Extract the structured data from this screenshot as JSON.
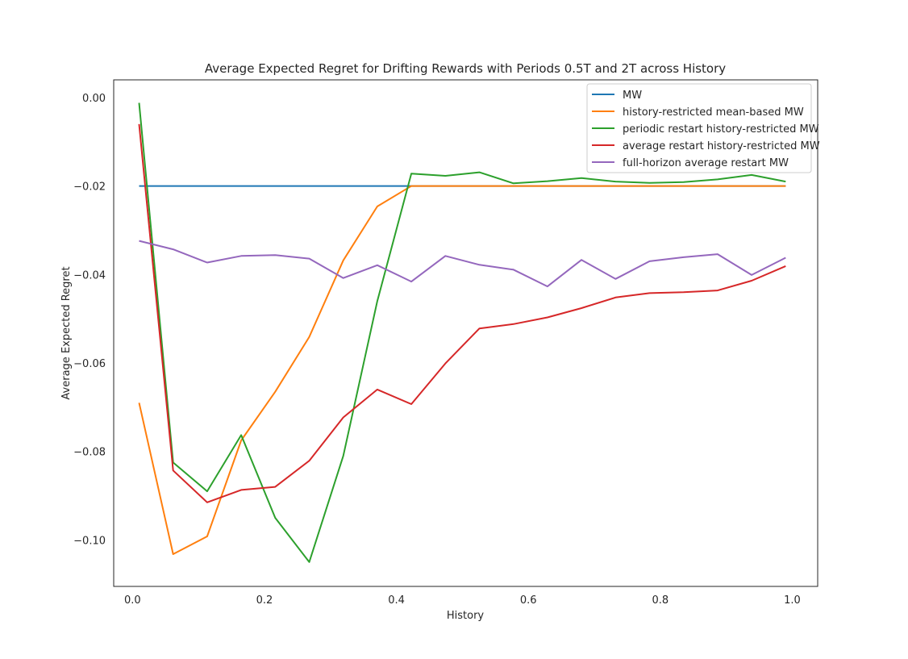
{
  "chart_data": {
    "type": "line",
    "title": "Average Expected Regret for Drifting Rewards with Periods 0.5T and 2T across History",
    "xlabel": "History",
    "ylabel": "Average Expected Regret",
    "xlim": [
      -0.0285,
      1.0385
    ],
    "ylim": [
      -0.1105,
      0.004
    ],
    "xticks": [
      "0.0",
      "0.2",
      "0.4",
      "0.6",
      "0.8",
      "1.0"
    ],
    "xtick_values": [
      0.0,
      0.2,
      0.4,
      0.6,
      0.8,
      1.0
    ],
    "yticks": [
      "0.00",
      "−0.02",
      "−0.04",
      "−0.06",
      "−0.08",
      "−0.10"
    ],
    "ytick_values": [
      0.0,
      -0.02,
      -0.04,
      -0.06,
      -0.08,
      -0.1
    ],
    "grid": false,
    "legend_position": "top-right",
    "x": [
      0.01,
      0.0616,
      0.1132,
      0.1647,
      0.2163,
      0.2679,
      0.3195,
      0.3711,
      0.4226,
      0.4742,
      0.5258,
      0.5774,
      0.6289,
      0.6805,
      0.7321,
      0.7837,
      0.8353,
      0.8868,
      0.9384,
      0.99
    ],
    "series": [
      {
        "name": "MW",
        "color": "#1f77b4",
        "values": [
          -0.02,
          -0.02,
          -0.02,
          -0.02,
          -0.02,
          -0.02,
          -0.02,
          -0.02,
          -0.02,
          -0.02,
          -0.02,
          -0.02,
          -0.02,
          -0.02,
          -0.02,
          -0.02,
          -0.02,
          -0.02,
          -0.02,
          -0.02
        ]
      },
      {
        "name": "history-restricted mean-based MW",
        "color": "#ff7f0e",
        "values": [
          -0.069,
          -0.1032,
          -0.0992,
          -0.0775,
          -0.0665,
          -0.0541,
          -0.0368,
          -0.0246,
          -0.02,
          -0.02,
          -0.02,
          -0.02,
          -0.02,
          -0.02,
          -0.02,
          -0.02,
          -0.02,
          -0.02,
          -0.02,
          -0.02
        ]
      },
      {
        "name": "periodic restart history-restricted MW",
        "color": "#2ca02c",
        "values": [
          -0.0012,
          -0.0825,
          -0.089,
          -0.0763,
          -0.095,
          -0.105,
          -0.081,
          -0.046,
          -0.0172,
          -0.0177,
          -0.0169,
          -0.0194,
          -0.0189,
          -0.0182,
          -0.019,
          -0.0193,
          -0.0191,
          -0.0185,
          -0.0175,
          -0.019
        ]
      },
      {
        "name": "average restart history-restricted MW",
        "color": "#d62728",
        "values": [
          -0.006,
          -0.0843,
          -0.0915,
          -0.0887,
          -0.088,
          -0.0821,
          -0.0723,
          -0.066,
          -0.0693,
          -0.0601,
          -0.0522,
          -0.0512,
          -0.0497,
          -0.0476,
          -0.0452,
          -0.0442,
          -0.044,
          -0.0436,
          -0.0414,
          -0.0381
        ]
      },
      {
        "name": "full-horizon average restart MW",
        "color": "#9467bd",
        "values": [
          -0.0324,
          -0.0343,
          -0.0373,
          -0.0358,
          -0.0356,
          -0.0364,
          -0.0408,
          -0.0379,
          -0.0416,
          -0.0358,
          -0.0378,
          -0.0389,
          -0.0427,
          -0.0367,
          -0.041,
          -0.037,
          -0.0361,
          -0.0354,
          -0.0401,
          -0.0362
        ]
      }
    ]
  }
}
